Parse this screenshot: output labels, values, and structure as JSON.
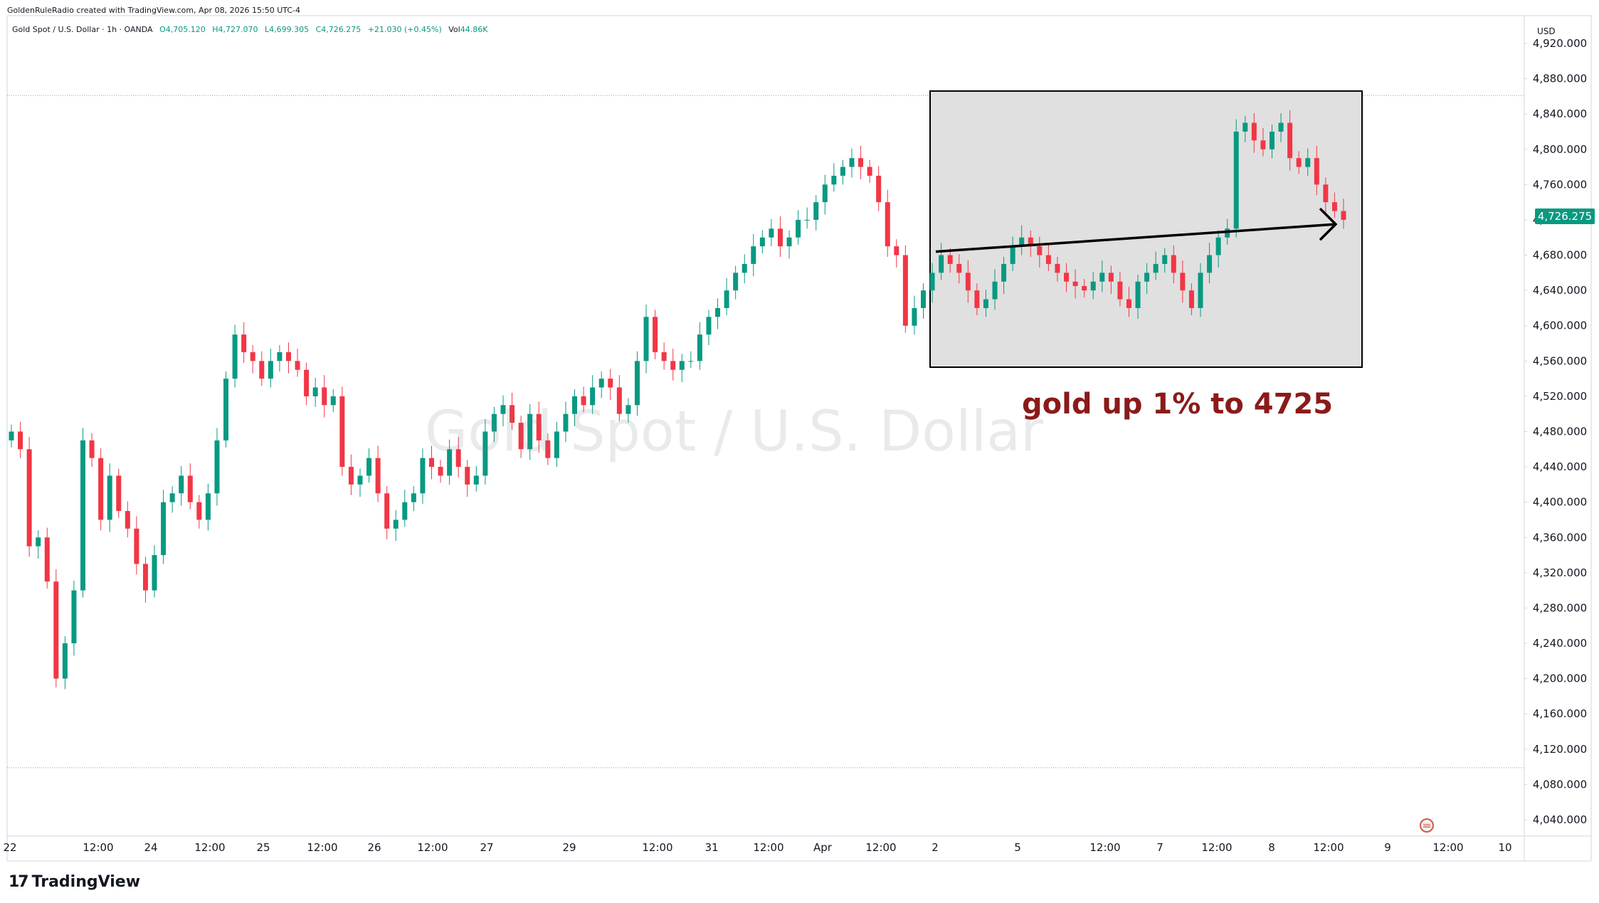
{
  "header": {
    "credit": "GoldenRuleRadio created with TradingView.com, Apr 08, 2026 15:50 UTC-4",
    "symbol": "Gold Spot / U.S. Dollar · 1h · OANDA",
    "open": "O4,705.120",
    "high": "H4,727.070",
    "low": "L4,699.305",
    "close": "C4,726.275",
    "change": "+21.030 (+0.45%)",
    "volume_label": "Vol",
    "volume": "44.86K"
  },
  "watermark": "Gold Spot / U.S. Dollar",
  "annotation": "gold up 1% to 4725",
  "brand": {
    "logo": "17",
    "name": "TradingView"
  },
  "price_axis": {
    "currency": "USD",
    "last_price_label": "4,726.275"
  },
  "colors": {
    "up": "#089981",
    "down": "#f23645",
    "box_fill": "#e0e0e0",
    "annotation": "#8b1a1a",
    "last_price_bg": "#089981"
  },
  "icons": {
    "flag": "us-flag-icon"
  },
  "chart_data": {
    "type": "candlestick",
    "title": "Gold Spot / U.S. Dollar",
    "timeframe": "1h",
    "ylim": [
      4020,
      4940
    ],
    "y_ticks": [
      "4,040.000",
      "4,080.000",
      "4,120.000",
      "4,160.000",
      "4,200.000",
      "4,240.000",
      "4,280.000",
      "4,320.000",
      "4,360.000",
      "4,400.000",
      "4,440.000",
      "4,480.000",
      "4,520.000",
      "4,560.000",
      "4,600.000",
      "4,640.000",
      "4,680.000",
      "4,720.000",
      "4,760.000",
      "4,800.000",
      "4,840.000",
      "4,880.000",
      "4,920.000"
    ],
    "x_ticks": [
      "22",
      "12:00",
      "24",
      "12:00",
      "25",
      "12:00",
      "26",
      "12:00",
      "27",
      "29",
      "12:00",
      "31",
      "12:00",
      "Apr",
      "12:00",
      "2",
      "5",
      "12:00",
      "7",
      "12:00",
      "8",
      "12:00",
      "9",
      "12:00",
      "10"
    ],
    "grid": false,
    "horizontal_levels": [
      4861,
      4099
    ],
    "box": {
      "price_top": 4866,
      "price_bottom": 4553
    },
    "trend_arrow": {
      "from_price": 4684,
      "to_price": 4715
    },
    "last_close": 4726.275,
    "closes": [
      4480,
      4460,
      4350,
      4360,
      4310,
      4200,
      4240,
      4300,
      4470,
      4450,
      4380,
      4430,
      4390,
      4370,
      4330,
      4300,
      4340,
      4400,
      4410,
      4430,
      4400,
      4380,
      4410,
      4470,
      4540,
      4590,
      4570,
      4560,
      4540,
      4560,
      4570,
      4560,
      4550,
      4520,
      4530,
      4510,
      4520,
      4440,
      4420,
      4430,
      4450,
      4410,
      4370,
      4380,
      4400,
      4410,
      4450,
      4440,
      4430,
      4460,
      4440,
      4420,
      4430,
      4480,
      4500,
      4510,
      4490,
      4460,
      4500,
      4470,
      4450,
      4480,
      4500,
      4520,
      4510,
      4530,
      4540,
      4530,
      4500,
      4510,
      4560,
      4610,
      4570,
      4560,
      4550,
      4560,
      4560,
      4590,
      4610,
      4620,
      4640,
      4660,
      4670,
      4690,
      4700,
      4710,
      4690,
      4700,
      4720,
      4720,
      4740,
      4760,
      4770,
      4780,
      4790,
      4780,
      4770,
      4740,
      4690,
      4680,
      4600,
      4620,
      4640,
      4660,
      4680,
      4670,
      4660,
      4640,
      4620,
      4630,
      4650,
      4670,
      4690,
      4700,
      4690,
      4680,
      4670,
      4660,
      4650,
      4645,
      4640,
      4650,
      4660,
      4650,
      4630,
      4620,
      4650,
      4660,
      4670,
      4680,
      4660,
      4640,
      4620,
      4660,
      4680,
      4700,
      4710,
      4820,
      4830,
      4810,
      4800,
      4820,
      4830,
      4790,
      4780,
      4790,
      4760,
      4740,
      4730,
      4720
    ]
  }
}
